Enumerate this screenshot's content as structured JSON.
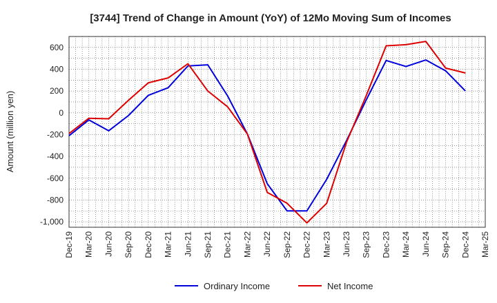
{
  "chart_data": {
    "type": "line",
    "title": "[3744]  Trend of Change in Amount (YoY) of 12Mo Moving Sum of Incomes",
    "xlabel": "",
    "ylabel": "Amount (million yen)",
    "x": [
      "Dec-19",
      "Mar-20",
      "Jun-20",
      "Sep-20",
      "Dec-20",
      "Mar-21",
      "Jun-21",
      "Sep-21",
      "Dec-21",
      "Mar-22",
      "Jun-22",
      "Sep-22",
      "Dec-22",
      "Mar-23",
      "Jun-23",
      "Sep-23",
      "Dec-23",
      "Mar-24",
      "Jun-24",
      "Sep-24",
      "Dec-24",
      "Mar-25"
    ],
    "ylim": [
      -1050,
      700
    ],
    "yticks": [
      600,
      400,
      200,
      0,
      -200,
      -400,
      -600,
      -800,
      -1000
    ],
    "ytick_labels": [
      "600",
      "400",
      "200",
      "0",
      "-200",
      "-400",
      "-600",
      "-800",
      "-1,000"
    ],
    "grid": true,
    "legend": "bottom",
    "series": [
      {
        "name": "Ordinary Income",
        "color": "#0000dd",
        "values": [
          -210,
          -65,
          -165,
          -25,
          160,
          230,
          430,
          440,
          155,
          -195,
          -650,
          -900,
          -900,
          -610,
          -255,
          120,
          480,
          425,
          485,
          385,
          200,
          null
        ]
      },
      {
        "name": "Net Income",
        "color": "#dd0000",
        "values": [
          -190,
          -50,
          -55,
          115,
          275,
          320,
          450,
          200,
          55,
          -195,
          -730,
          -830,
          -1010,
          -830,
          -270,
          160,
          615,
          625,
          655,
          410,
          365,
          null
        ]
      }
    ]
  }
}
